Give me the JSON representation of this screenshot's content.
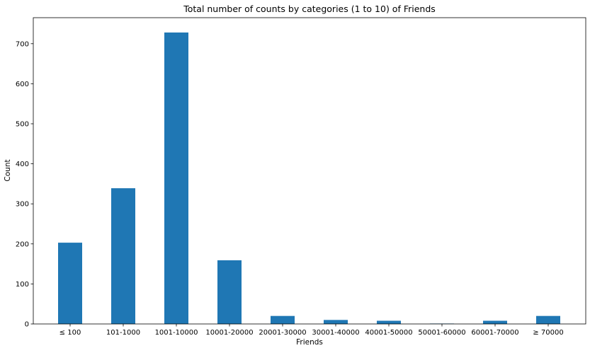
{
  "chart_data": {
    "type": "bar",
    "title": "Total number of counts by categories (1 to 10) of Friends",
    "xlabel": "Friends",
    "ylabel": "Count",
    "categories": [
      "≤ 100",
      "101-1000",
      "1001-10000",
      "10001-20000",
      "20001-30000",
      "30001-40000",
      "40001-50000",
      "50001-60000",
      "60001-70000",
      "≥ 70000"
    ],
    "values": [
      203,
      339,
      728,
      159,
      20,
      10,
      8,
      1,
      8,
      20
    ],
    "ylim": [
      0,
      765
    ],
    "yticks": [
      0,
      100,
      200,
      300,
      400,
      500,
      600,
      700
    ],
    "bar_color": "#1f77b4",
    "grid": false,
    "legend": "none"
  }
}
